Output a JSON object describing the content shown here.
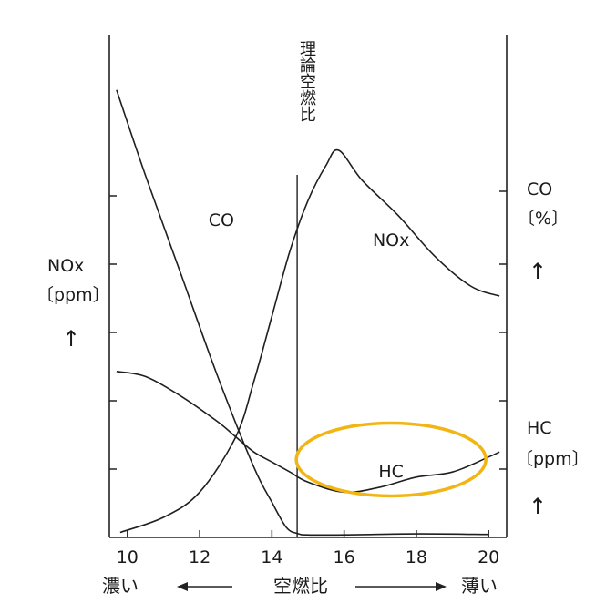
{
  "chart_data": {
    "type": "line",
    "x_ticks": [
      "10",
      "12",
      "14",
      "16",
      "18",
      "20"
    ],
    "xlim": [
      9.5,
      20.5
    ],
    "xlabel": "空燃比",
    "x_left_label": "濃い",
    "x_right_label": "薄い",
    "stoich_label": "理論空燃比",
    "stoich_x": 14.7,
    "left_axis": {
      "label_line1": "NOx",
      "label_line2": "〔ppm〕",
      "arrow": "↑"
    },
    "right_axis_co": {
      "label_line1": "CO",
      "label_line2": "〔%〕",
      "arrow": "↑"
    },
    "right_axis_hc": {
      "label_line1": "HC",
      "label_line2": "〔ppm〕",
      "arrow": "↑"
    },
    "y_relative_range": [
      0,
      1
    ],
    "series": [
      {
        "name": "CO",
        "x": [
          9.7,
          10.5,
          11.5,
          12.5,
          13.5,
          14.0,
          14.4,
          14.7,
          15.0,
          16.0,
          18.0,
          20.0
        ],
        "y": [
          0.89,
          0.72,
          0.52,
          0.32,
          0.14,
          0.07,
          0.02,
          0.008,
          0.005,
          0.005,
          0.007,
          0.006
        ]
      },
      {
        "name": "NOx",
        "x": [
          9.8,
          11.0,
          12.0,
          13.0,
          13.5,
          14.0,
          14.5,
          15.0,
          15.5,
          15.85,
          16.5,
          17.5,
          18.5,
          19.5,
          20.3
        ],
        "y": [
          0.01,
          0.04,
          0.09,
          0.2,
          0.31,
          0.44,
          0.57,
          0.67,
          0.74,
          0.77,
          0.71,
          0.64,
          0.56,
          0.5,
          0.48
        ]
      },
      {
        "name": "HC",
        "x": [
          9.7,
          10.5,
          11.5,
          12.5,
          13.0,
          13.5,
          14.0,
          14.5,
          15.0,
          16.0,
          17.0,
          18.0,
          19.0,
          20.0,
          20.3
        ],
        "y": [
          0.33,
          0.32,
          0.28,
          0.23,
          0.2,
          0.17,
          0.15,
          0.13,
          0.11,
          0.09,
          0.1,
          0.12,
          0.13,
          0.16,
          0.17
        ]
      }
    ],
    "series_labels": {
      "CO": {
        "text": "CO",
        "x": 12.6,
        "y": 0.62
      },
      "NOx": {
        "text": "NOx",
        "x": 17.3,
        "y": 0.58
      },
      "HC": {
        "text": "HC",
        "x": 17.3,
        "y": 0.12
      }
    },
    "highlight": {
      "shape": "ellipse",
      "color": "#F2B614",
      "center_x": 17.3,
      "center_y": 0.155
    },
    "grid": false,
    "line_color": "#1f1f1f"
  }
}
